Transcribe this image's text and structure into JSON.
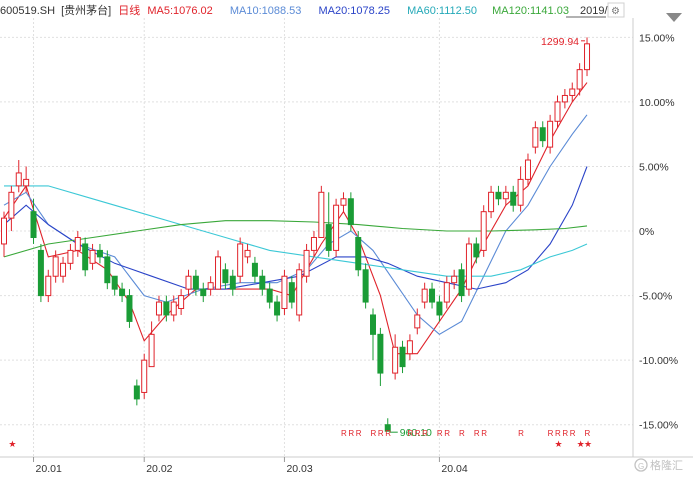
{
  "header": {
    "code": "600519.SH",
    "name": "[贵州茅台]",
    "period": "日线",
    "ma5": "MA5:1076.02",
    "ma10": "MA10:1088.53",
    "ma20": "MA20:1078.25",
    "ma60": "MA60:1112.50",
    "ma120": "MA120:1141.03",
    "date": "2019/..."
  },
  "watermark": "格隆汇",
  "colors": {
    "up": "#e0232b",
    "down": "#1a9c36",
    "ma5": "#e0232b",
    "ma10": "#5b8bd6",
    "ma20": "#2b44c8",
    "ma60": "#3cc8d6",
    "ma120": "#3aa83a",
    "grid": "#e0e0e0",
    "price_label": "#e0232b",
    "low_label": "#1a9c36"
  },
  "chart_data": {
    "type": "candlestick",
    "y_unit": "percent change",
    "ylim": [
      -17.5,
      16.5
    ],
    "y_ticks": [
      {
        "value": 15,
        "label": "15.00%"
      },
      {
        "value": 10,
        "label": "10.00%"
      },
      {
        "value": 5,
        "label": "5.00%"
      },
      {
        "value": 0,
        "label": "0%"
      },
      {
        "value": -5,
        "label": "-5.00%"
      },
      {
        "value": -10,
        "label": "-10.00%"
      },
      {
        "value": -15,
        "label": "-15.00%"
      }
    ],
    "x_ticks": [
      {
        "index": 4,
        "label": "20.01"
      },
      {
        "index": 19,
        "label": "20.02"
      },
      {
        "index": 38,
        "label": "20.03"
      },
      {
        "index": 59,
        "label": "20.04"
      }
    ],
    "candles": [
      [
        -1,
        1,
        -2,
        1.5
      ],
      [
        1,
        3,
        0,
        3.5
      ],
      [
        3.5,
        4.5,
        3,
        5.5
      ],
      [
        3.5,
        4,
        3,
        5
      ],
      [
        1.5,
        -0.5,
        -1,
        2.5
      ],
      [
        -1.5,
        -5,
        -5.5,
        -1
      ],
      [
        -5,
        -3.5,
        -5.5,
        -3
      ],
      [
        -3.5,
        -2,
        -4,
        -1.5
      ],
      [
        -3.5,
        -2.5,
        -4,
        -2
      ],
      [
        -2.5,
        -1.5,
        -3,
        -1
      ],
      [
        -1.5,
        -0.5,
        -2,
        0
      ],
      [
        -1,
        -3,
        -3.5,
        -0.5
      ],
      [
        -2.5,
        -1.5,
        -3,
        -1
      ],
      [
        -1.5,
        -2,
        -2.5,
        -1
      ],
      [
        -2,
        -4,
        -4.5,
        -1.5
      ],
      [
        -3.5,
        -4.5,
        -5,
        -3.5
      ],
      [
        -4.5,
        -5,
        -5.5,
        -4
      ],
      [
        -5,
        -7,
        -7.5,
        -4.5
      ],
      [
        -12,
        -13,
        -13.5,
        -11.5
      ],
      [
        -12.5,
        -10,
        -13,
        -9.5
      ],
      [
        -10.5,
        -8,
        -10.5,
        -7
      ],
      [
        -6.5,
        -5.5,
        -7,
        -5
      ],
      [
        -5.5,
        -6.5,
        -7,
        -5
      ],
      [
        -6.5,
        -5.5,
        -7,
        -5
      ],
      [
        -6,
        -5,
        -6.5,
        -4.5
      ],
      [
        -4.5,
        -3.5,
        -5,
        -3
      ],
      [
        -3.5,
        -4.5,
        -5,
        -3
      ],
      [
        -4.5,
        -5,
        -5.5,
        -4
      ],
      [
        -4.5,
        -4,
        -5,
        -3.5
      ],
      [
        -4.5,
        -2,
        -4.5,
        -1.5
      ],
      [
        -3,
        -4,
        -4.5,
        -2.5
      ],
      [
        -3.5,
        -4.5,
        -5,
        -3
      ],
      [
        -3.5,
        -1,
        -4,
        -0.5
      ],
      [
        -2,
        -1.5,
        -2.5,
        -1
      ],
      [
        -2.5,
        -3.5,
        -4,
        -2
      ],
      [
        -3.5,
        -4.5,
        -5,
        -3
      ],
      [
        -4.5,
        -5.5,
        -6,
        -4
      ],
      [
        -5.5,
        -6.5,
        -7,
        -5
      ],
      [
        -6,
        -3.5,
        -6.5,
        -3
      ],
      [
        -4,
        -5.5,
        -6,
        -3.5
      ],
      [
        -6.5,
        -3,
        -7,
        -2.5
      ],
      [
        -3.5,
        -1.5,
        -4,
        -1
      ],
      [
        -1.5,
        -0.5,
        -2,
        0
      ],
      [
        -0.5,
        3,
        -0.5,
        3.5
      ],
      [
        0.5,
        -1.5,
        -2,
        3
      ],
      [
        -1.5,
        2,
        -2,
        2.5
      ],
      [
        2,
        2.5,
        1.5,
        3
      ],
      [
        2.5,
        0.5,
        0,
        3
      ],
      [
        -0.5,
        -3,
        -3.5,
        0
      ],
      [
        -3,
        -5.5,
        -6,
        -2.5
      ],
      [
        -6.5,
        -8,
        -10,
        -6
      ],
      [
        -8,
        -11,
        -12,
        -7.5
      ],
      [
        -15,
        -15.5,
        -15.5,
        -14.5
      ],
      [
        -11,
        -9,
        -11.5,
        -8
      ],
      [
        -9,
        -10.5,
        -11,
        -8.5
      ],
      [
        -9.5,
        -8.5,
        -10,
        -8
      ],
      [
        -7.5,
        -6.5,
        -8,
        -6
      ],
      [
        -5.5,
        -4.5,
        -6,
        -4
      ],
      [
        -4.5,
        -5.5,
        -6,
        -4
      ],
      [
        -5.5,
        -6.5,
        -7,
        -5
      ],
      [
        -5.5,
        -4,
        -6,
        -3.5
      ],
      [
        -4,
        -3.5,
        -4.5,
        -3
      ],
      [
        -3,
        -5,
        -5.5,
        -2.5
      ],
      [
        -4.5,
        -1,
        -5,
        -0.5
      ],
      [
        -1,
        -2,
        -2.5,
        -0.5
      ],
      [
        -1.5,
        1.5,
        -2,
        2
      ],
      [
        1.5,
        3,
        1,
        3.5
      ],
      [
        3,
        2.5,
        2,
        3.5
      ],
      [
        2.5,
        3,
        2,
        3.5
      ],
      [
        3,
        2,
        1.5,
        3.5
      ],
      [
        2,
        4,
        1.5,
        5
      ],
      [
        4,
        5.5,
        3.5,
        6
      ],
      [
        6.5,
        8,
        6,
        8.5
      ],
      [
        8,
        7,
        6.5,
        8.5
      ],
      [
        6.5,
        8.5,
        6,
        9
      ],
      [
        8.5,
        10,
        8,
        10.5
      ],
      [
        10,
        10.5,
        9.5,
        11
      ],
      [
        10.5,
        11,
        10,
        11.5
      ],
      [
        11,
        12.5,
        10.5,
        13
      ],
      [
        12.5,
        14.5,
        12,
        15
      ]
    ],
    "ma_series": [
      {
        "name": "MA5",
        "color_key": "ma5",
        "points": [
          [
            0,
            1
          ],
          [
            3,
            3.5
          ],
          [
            6,
            -2
          ],
          [
            10,
            -1.5
          ],
          [
            14,
            -3
          ],
          [
            17,
            -5.5
          ],
          [
            19,
            -8.5
          ],
          [
            22,
            -6.5
          ],
          [
            26,
            -4.5
          ],
          [
            31,
            -4.5
          ],
          [
            36,
            -4.5
          ],
          [
            39,
            -5
          ],
          [
            43,
            -1
          ],
          [
            46,
            1.5
          ],
          [
            48,
            -0.5
          ],
          [
            51,
            -5
          ],
          [
            53,
            -9.5
          ],
          [
            56,
            -9.5
          ],
          [
            59,
            -7
          ],
          [
            62,
            -4.5
          ],
          [
            65,
            -1
          ],
          [
            68,
            2
          ],
          [
            71,
            3.5
          ],
          [
            74,
            7
          ],
          [
            77,
            10
          ],
          [
            79,
            11.5
          ]
        ]
      },
      {
        "name": "MA10",
        "color_key": "ma10",
        "points": [
          [
            0,
            2
          ],
          [
            3,
            3
          ],
          [
            6,
            0.5
          ],
          [
            10,
            -1
          ],
          [
            15,
            -2
          ],
          [
            19,
            -5
          ],
          [
            22,
            -5.5
          ],
          [
            27,
            -4.5
          ],
          [
            32,
            -4
          ],
          [
            37,
            -4
          ],
          [
            41,
            -3
          ],
          [
            44,
            -1
          ],
          [
            47,
            0
          ],
          [
            50,
            -1.5
          ],
          [
            53,
            -4
          ],
          [
            56,
            -6.5
          ],
          [
            59,
            -8
          ],
          [
            62,
            -7
          ],
          [
            65,
            -3.5
          ],
          [
            68,
            0
          ],
          [
            71,
            2
          ],
          [
            74,
            5
          ],
          [
            77,
            7.5
          ],
          [
            79,
            9
          ]
        ]
      },
      {
        "name": "MA20",
        "color_key": "ma20",
        "points": [
          [
            0,
            0.5
          ],
          [
            3,
            2
          ],
          [
            6,
            0.5
          ],
          [
            10,
            -1
          ],
          [
            15,
            -2.5
          ],
          [
            20,
            -3.5
          ],
          [
            25,
            -4.5
          ],
          [
            30,
            -4.5
          ],
          [
            35,
            -4
          ],
          [
            40,
            -3.5
          ],
          [
            45,
            -2
          ],
          [
            49,
            -2
          ],
          [
            52,
            -2.5
          ],
          [
            56,
            -3.5
          ],
          [
            60,
            -4
          ],
          [
            64,
            -4.5
          ],
          [
            68,
            -4
          ],
          [
            71,
            -3
          ],
          [
            74,
            -1
          ],
          [
            77,
            2
          ],
          [
            79,
            5
          ]
        ]
      },
      {
        "name": "MA60",
        "color_key": "ma60",
        "points": [
          [
            0,
            3.5
          ],
          [
            6,
            3.5
          ],
          [
            12,
            2.5
          ],
          [
            18,
            1.5
          ],
          [
            24,
            0.5
          ],
          [
            30,
            -0.5
          ],
          [
            36,
            -1.5
          ],
          [
            42,
            -2
          ],
          [
            48,
            -2.5
          ],
          [
            54,
            -3
          ],
          [
            60,
            -3.5
          ],
          [
            66,
            -3.5
          ],
          [
            70,
            -3
          ],
          [
            74,
            -2
          ],
          [
            77,
            -1.5
          ],
          [
            79,
            -1
          ]
        ]
      },
      {
        "name": "MA120",
        "color_key": "ma120",
        "points": [
          [
            0,
            -2
          ],
          [
            6,
            -1
          ],
          [
            12,
            -0.5
          ],
          [
            18,
            0
          ],
          [
            24,
            0.5
          ],
          [
            30,
            0.8
          ],
          [
            36,
            0.8
          ],
          [
            42,
            0.7
          ],
          [
            48,
            0.5
          ],
          [
            54,
            0.2
          ],
          [
            60,
            0
          ],
          [
            66,
            0
          ],
          [
            72,
            0.1
          ],
          [
            76,
            0.2
          ],
          [
            79,
            0.4
          ]
        ]
      }
    ],
    "annotations": [
      {
        "label": "1299.94",
        "index": 79,
        "value": 14.5,
        "color_key": "price_label",
        "side": "left"
      },
      {
        "label": "960.10",
        "index": 52,
        "value": -15.5,
        "color_key": "low_label",
        "side": "right"
      }
    ],
    "markers": {
      "r_indices": [
        46,
        47,
        48,
        50,
        51,
        52,
        55,
        56,
        57,
        59,
        60,
        62,
        64,
        65,
        70,
        74,
        75,
        76,
        77,
        79
      ],
      "r_label": "R",
      "star_indices": [
        1,
        75,
        78,
        79
      ],
      "star_label": "★"
    }
  }
}
